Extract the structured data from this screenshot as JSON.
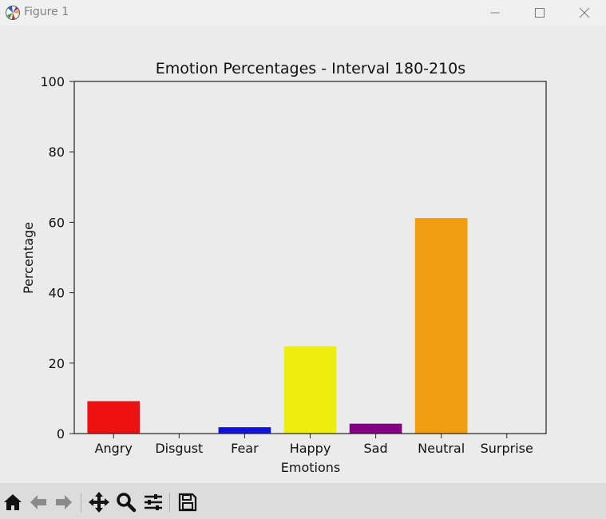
{
  "window": {
    "title": "Figure 1"
  },
  "toolbar": {
    "buttons": [
      "home-icon",
      "back-icon",
      "forward-icon",
      "pan-icon",
      "zoom-icon",
      "configure-icon",
      "save-icon"
    ]
  },
  "colors": {
    "figure_bg": "#ebebeb",
    "plot_bg": "#ebebeb",
    "axis": "#222222"
  },
  "chart_data": {
    "type": "bar",
    "title": "Emotion Percentages - Interval 180-210s",
    "xlabel": "Emotions",
    "ylabel": "Percentage",
    "ylim": [
      0,
      100
    ],
    "yticks": [
      "0",
      "20",
      "40",
      "60",
      "80",
      "100"
    ],
    "categories": [
      "Angry",
      "Disgust",
      "Fear",
      "Happy",
      "Sad",
      "Neutral",
      "Surprise"
    ],
    "values": [
      9.2,
      0,
      1.8,
      24.8,
      2.8,
      61.2,
      0
    ],
    "bar_colors": [
      "#ee1111",
      "#008000",
      "#1111dd",
      "#eeee0d",
      "#800080",
      "#ee9e0e",
      "#00b0b0"
    ],
    "grid": false,
    "legend": "none"
  }
}
